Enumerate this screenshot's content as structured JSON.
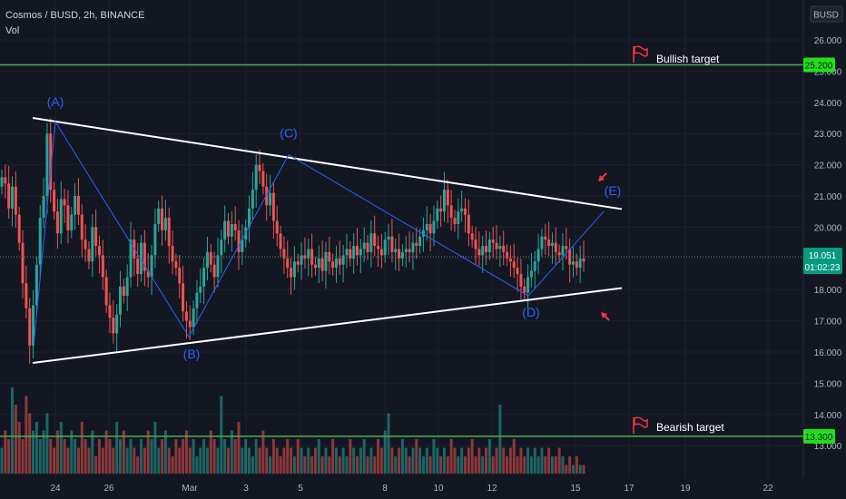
{
  "header": {
    "symbol_line": "Cosmos / BUSD, 2h, BINANCE",
    "indicator": "Vol"
  },
  "currency_badge": "BUSD",
  "colors": {
    "background": "#131722",
    "grid": "#1e222d",
    "up": "#26a69a",
    "down": "#ef5350",
    "target_line": "#4caf50",
    "target_badge": "#21e019",
    "pattern_line": "#ffffff",
    "wave_line": "#2962ff",
    "wave_label": "#2962ff",
    "arrow": "#f23645",
    "price_line": "#787b86"
  },
  "chart_data": {
    "type": "candlestick",
    "title": "Cosmos / BUSD, 2h, BINANCE",
    "y_axis": {
      "ticks": [
        "26.000",
        "25.000",
        "24.000",
        "23.000",
        "22.000",
        "21.000",
        "20.000",
        "19.000",
        "18.000",
        "17.000",
        "16.000",
        "15.000",
        "14.000",
        "13.000"
      ],
      "range": [
        12.4,
        27.0
      ]
    },
    "x_axis": {
      "ticks": [
        "24",
        "26",
        "Mar",
        "3",
        "5",
        "8",
        "10",
        "12",
        "15",
        "17",
        "19",
        "22"
      ]
    },
    "current_price": {
      "value": "19.051",
      "countdown": "01:02:23"
    },
    "targets": [
      {
        "name": "Bullish target",
        "price": "25.200",
        "value": 25.2
      },
      {
        "name": "Bearish target",
        "price": "13.300",
        "value": 13.3
      }
    ],
    "triangle": {
      "upper": [
        {
          "x": "Feb 23",
          "y": 23.5
        },
        {
          "x": "Mar 17",
          "y": 20.58
        }
      ],
      "lower": [
        {
          "x": "Feb 23",
          "y": 15.65
        },
        {
          "x": "Mar 17",
          "y": 18.05
        }
      ]
    },
    "waves": [
      {
        "label": "(A)",
        "x": "Feb 24",
        "y": 23.38
      },
      {
        "label": "(B)",
        "x": "Feb 27",
        "y": 16.49
      },
      {
        "label": "(C)",
        "x": "Mar 4",
        "y": 22.32
      },
      {
        "label": "(D)",
        "x": "Mar 14",
        "y": 17.8
      },
      {
        "label": "(E)",
        "x": "Mar 16",
        "y": 20.5
      }
    ],
    "candles_approx": [
      21.6,
      21.4,
      20.6,
      21.3,
      20.4,
      19.5,
      18.2,
      17.4,
      16.2,
      17.5,
      18.8,
      20.3,
      21.0,
      23.0,
      21.2,
      20.5,
      19.8,
      20.9,
      20.7,
      19.9,
      20.4,
      21.0,
      20.4,
      19.6,
      19.3,
      18.9,
      20.0,
      19.4,
      19.1,
      18.4,
      17.5,
      17.1,
      16.6,
      17.2,
      18.1,
      17.8,
      18.4,
      19.6,
      19.0,
      18.5,
      19.5,
      18.6,
      18.4,
      19.1,
      20.1,
      20.6,
      19.9,
      20.3,
      19.4,
      18.9,
      18.7,
      18.2,
      17.3,
      17.0,
      16.8,
      17.4,
      17.9,
      18.1,
      18.7,
      19.2,
      18.8,
      18.4,
      19.1,
      19.6,
      20.2,
      19.7,
      20.1,
      19.9,
      19.2,
      19.6,
      20.0,
      20.6,
      21.2,
      22.0,
      21.8,
      21.3,
      20.7,
      21.1,
      20.2,
      19.8,
      19.3,
      19.0,
      18.7,
      18.4,
      18.9,
      18.8,
      19.1,
      19.0,
      19.3,
      18.8,
      18.7,
      19.0,
      18.6,
      19.2,
      18.9,
      18.7,
      19.0,
      18.8,
      19.1,
      19.3,
      19.0,
      19.4,
      19.1,
      19.3,
      19.5,
      19.2,
      19.8,
      19.4,
      19.3,
      19.1,
      19.6,
      19.7,
      19.2,
      19.3,
      19.0,
      19.2,
      19.3,
      19.2,
      19.5,
      19.4,
      19.7,
      19.9,
      20.1,
      19.8,
      20.2,
      20.6,
      20.5,
      21.2,
      20.7,
      20.3,
      20.1,
      20.5,
      20.6,
      20.4,
      19.8,
      19.6,
      19.3,
      19.1,
      19.4,
      19.2,
      19.6,
      19.5,
      19.3,
      19.4,
      19.2,
      19.0,
      18.9,
      18.7,
      18.5,
      18.1,
      17.9,
      18.4,
      18.6,
      18.9,
      19.3,
      19.7,
      19.6,
      19.4,
      19.5,
      19.2,
      19.1,
      19.4,
      19.3,
      18.8,
      18.9,
      18.7,
      19.0,
      18.9
    ],
    "volume_approx": [
      0.3,
      0.5,
      0.4,
      1.0,
      0.8,
      0.6,
      0.4,
      0.9,
      0.7,
      0.5,
      0.6,
      0.4,
      0.5,
      0.7,
      0.4,
      0.3,
      0.5,
      0.6,
      0.4,
      0.3,
      0.5,
      0.4,
      0.3,
      0.6,
      0.4,
      0.3,
      0.5,
      0.2,
      0.4,
      0.3,
      0.5,
      0.4,
      0.3,
      0.6,
      0.4,
      0.5,
      0.3,
      0.4,
      0.3,
      0.2,
      0.4,
      0.3,
      0.5,
      0.4,
      0.6,
      0.3,
      0.4,
      0.5,
      0.3,
      0.2,
      0.4,
      0.3,
      0.4,
      0.5,
      0.3,
      0.4,
      0.2,
      0.3,
      0.4,
      0.3,
      0.5,
      0.4,
      0.3,
      0.9,
      0.4,
      0.3,
      0.5,
      0.4,
      0.6,
      0.3,
      0.4,
      0.3,
      0.2,
      0.4,
      0.3,
      0.5,
      0.3,
      0.2,
      0.4,
      0.3,
      0.2,
      0.3,
      0.4,
      0.3,
      0.2,
      0.4,
      0.3,
      0.2,
      0.3,
      0.2,
      0.3,
      0.4,
      0.2,
      0.3,
      0.2,
      0.4,
      0.3,
      0.2,
      0.3,
      0.2,
      0.4,
      0.3,
      0.2,
      0.3,
      0.4,
      0.2,
      0.3,
      0.2,
      0.4,
      0.3,
      0.5,
      0.7,
      0.3,
      0.2,
      0.3,
      0.4,
      0.3,
      0.2,
      0.3,
      0.4,
      0.3,
      0.2,
      0.3,
      0.2,
      0.4,
      0.3,
      0.2,
      0.3,
      0.2,
      0.4,
      0.3,
      0.2,
      0.3,
      0.2,
      0.3,
      0.4,
      0.2,
      0.3,
      0.2,
      0.3,
      0.4,
      0.2,
      0.3,
      0.8,
      0.3,
      0.2,
      0.3,
      0.4,
      0.2,
      0.3,
      0.2,
      0.3,
      0.2,
      0.3,
      0.2,
      0.3,
      0.2,
      0.3,
      0.2,
      0.2,
      0.3,
      0.2,
      0.1,
      0.2,
      0.1,
      0.2,
      0.1,
      0.1
    ]
  }
}
